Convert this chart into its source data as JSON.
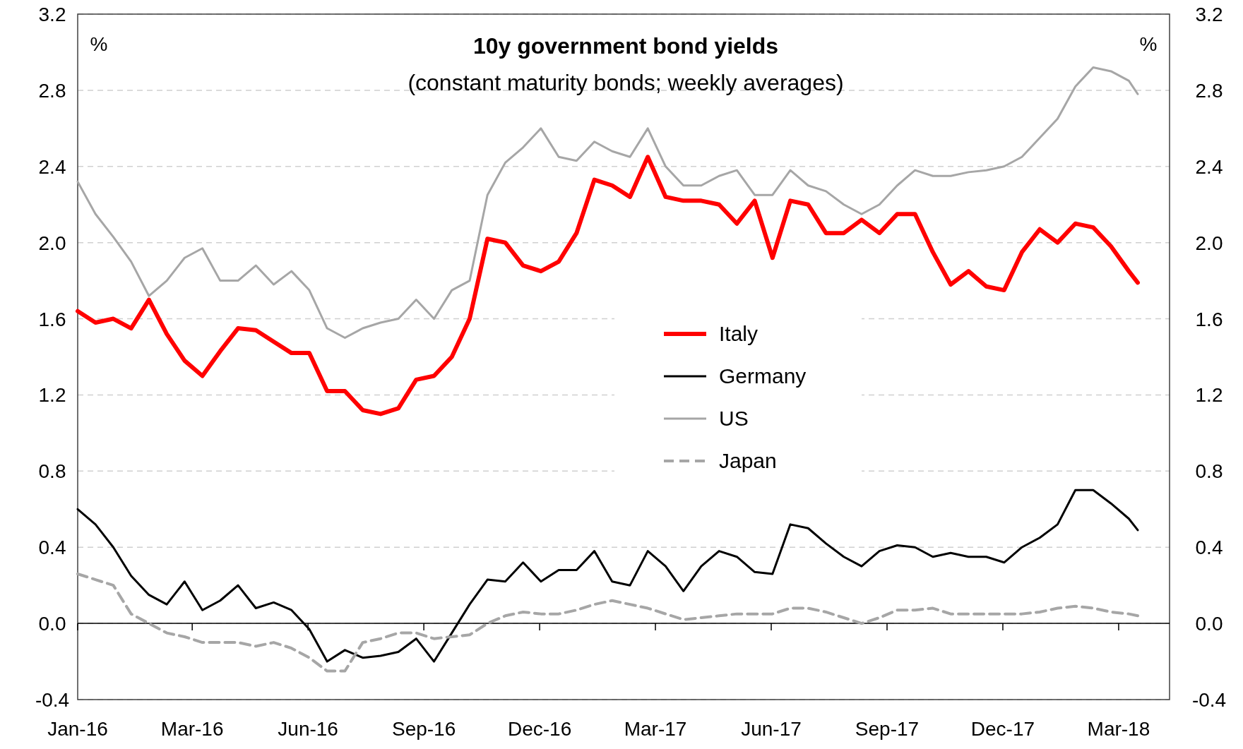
{
  "chart_data": {
    "type": "line",
    "title": "10y government bond yields",
    "subtitle": "(constant maturity bonds; weekly averages)",
    "ylabel": "%",
    "y2label": "%",
    "x": [
      "2016-01-01",
      "2016-01-15",
      "2016-01-29",
      "2016-02-12",
      "2016-02-26",
      "2016-03-11",
      "2016-03-25",
      "2016-04-08",
      "2016-04-22",
      "2016-05-06",
      "2016-05-20",
      "2016-06-03",
      "2016-06-17",
      "2016-07-01",
      "2016-07-15",
      "2016-07-29",
      "2016-08-12",
      "2016-08-26",
      "2016-09-09",
      "2016-09-23",
      "2016-10-07",
      "2016-10-21",
      "2016-11-04",
      "2016-11-18",
      "2016-12-02",
      "2016-12-16",
      "2016-12-30",
      "2017-01-13",
      "2017-01-27",
      "2017-02-10",
      "2017-02-24",
      "2017-03-10",
      "2017-03-24",
      "2017-04-07",
      "2017-04-21",
      "2017-05-05",
      "2017-05-19",
      "2017-06-02",
      "2017-06-16",
      "2017-06-30",
      "2017-07-14",
      "2017-07-28",
      "2017-08-11",
      "2017-08-25",
      "2017-09-08",
      "2017-09-22",
      "2017-10-06",
      "2017-10-20",
      "2017-11-03",
      "2017-11-17",
      "2017-12-01",
      "2017-12-15",
      "2017-12-29",
      "2018-01-12",
      "2018-01-26",
      "2018-02-09",
      "2018-02-23",
      "2018-03-09",
      "2018-03-23",
      "2018-04-06",
      "2018-04-13"
    ],
    "series": [
      {
        "name": "Italy",
        "color": "#ff0000",
        "line_style": "solid",
        "values": [
          1.64,
          1.58,
          1.6,
          1.55,
          1.7,
          1.52,
          1.38,
          1.3,
          1.43,
          1.55,
          1.54,
          1.48,
          1.42,
          1.42,
          1.22,
          1.22,
          1.12,
          1.1,
          1.13,
          1.28,
          1.3,
          1.4,
          1.6,
          2.02,
          2.0,
          1.88,
          1.85,
          1.9,
          2.05,
          2.33,
          2.3,
          2.24,
          2.45,
          2.24,
          2.22,
          2.22,
          2.2,
          2.1,
          2.22,
          1.92,
          2.22,
          2.2,
          2.05,
          2.05,
          2.12,
          2.05,
          2.15,
          2.15,
          1.95,
          1.78,
          1.85,
          1.77,
          1.75,
          1.95,
          2.07,
          2.0,
          2.1,
          2.08,
          1.98,
          1.85,
          1.79
        ]
      },
      {
        "name": "Germany",
        "color": "#000000",
        "line_style": "solid",
        "values": [
          0.6,
          0.52,
          0.4,
          0.25,
          0.15,
          0.1,
          0.22,
          0.07,
          0.12,
          0.2,
          0.08,
          0.11,
          0.07,
          -0.03,
          -0.2,
          -0.14,
          -0.18,
          -0.17,
          -0.15,
          -0.08,
          -0.2,
          -0.05,
          0.1,
          0.23,
          0.22,
          0.32,
          0.22,
          0.28,
          0.28,
          0.38,
          0.22,
          0.2,
          0.38,
          0.3,
          0.17,
          0.3,
          0.38,
          0.35,
          0.27,
          0.26,
          0.52,
          0.5,
          0.42,
          0.35,
          0.3,
          0.38,
          0.41,
          0.4,
          0.35,
          0.37,
          0.35,
          0.35,
          0.32,
          0.4,
          0.45,
          0.52,
          0.7,
          0.7,
          0.63,
          0.55,
          0.49
        ]
      },
      {
        "name": "US",
        "color": "#a6a6a6",
        "line_style": "solid",
        "values": [
          2.32,
          2.15,
          2.03,
          1.9,
          1.72,
          1.8,
          1.92,
          1.97,
          1.8,
          1.8,
          1.88,
          1.78,
          1.85,
          1.75,
          1.55,
          1.5,
          1.55,
          1.58,
          1.6,
          1.7,
          1.6,
          1.75,
          1.8,
          2.25,
          2.42,
          2.5,
          2.6,
          2.45,
          2.43,
          2.53,
          2.48,
          2.45,
          2.6,
          2.4,
          2.3,
          2.3,
          2.35,
          2.38,
          2.25,
          2.25,
          2.38,
          2.3,
          2.27,
          2.2,
          2.15,
          2.2,
          2.3,
          2.38,
          2.35,
          2.35,
          2.37,
          2.38,
          2.4,
          2.45,
          2.55,
          2.65,
          2.82,
          2.92,
          2.9,
          2.85,
          2.78
        ]
      },
      {
        "name": "Japan",
        "color": "#a6a6a6",
        "line_style": "dashed",
        "values": [
          0.26,
          0.23,
          0.2,
          0.05,
          0.0,
          -0.05,
          -0.07,
          -0.1,
          -0.1,
          -0.1,
          -0.12,
          -0.1,
          -0.13,
          -0.18,
          -0.25,
          -0.25,
          -0.1,
          -0.08,
          -0.05,
          -0.05,
          -0.08,
          -0.07,
          -0.06,
          0.0,
          0.04,
          0.06,
          0.05,
          0.05,
          0.07,
          0.1,
          0.12,
          0.1,
          0.08,
          0.05,
          0.02,
          0.03,
          0.04,
          0.05,
          0.05,
          0.05,
          0.08,
          0.08,
          0.06,
          0.03,
          0.0,
          0.03,
          0.07,
          0.07,
          0.08,
          0.05,
          0.05,
          0.05,
          0.05,
          0.05,
          0.06,
          0.08,
          0.09,
          0.08,
          0.06,
          0.05,
          0.04
        ]
      }
    ],
    "xlim": [
      "2016-01-01",
      "2018-05-08"
    ],
    "xticks": [
      {
        "value": "2016-01-01",
        "label": "Jan-16"
      },
      {
        "value": "2016-03-31",
        "label": "Mar-16"
      },
      {
        "value": "2016-06-30",
        "label": "Jun-16"
      },
      {
        "value": "2016-09-29",
        "label": "Sep-16"
      },
      {
        "value": "2016-12-29",
        "label": "Dec-16"
      },
      {
        "value": "2017-03-30",
        "label": "Mar-17"
      },
      {
        "value": "2017-06-29",
        "label": "Jun-17"
      },
      {
        "value": "2017-09-28",
        "label": "Sep-17"
      },
      {
        "value": "2017-12-28",
        "label": "Dec-17"
      },
      {
        "value": "2018-03-29",
        "label": "Mar-18"
      }
    ],
    "ylim": [
      -0.4,
      3.2
    ],
    "yticks": [
      {
        "value": -0.4,
        "label": "-0.4"
      },
      {
        "value": 0,
        "label": "0.0"
      },
      {
        "value": 0.4,
        "label": "0.4"
      },
      {
        "value": 0.8,
        "label": "0.8"
      },
      {
        "value": 1.2,
        "label": "1.2"
      },
      {
        "value": 1.6,
        "label": "1.6"
      },
      {
        "value": 2.0,
        "label": "2.0"
      },
      {
        "value": 2.4,
        "label": "2.4"
      },
      {
        "value": 2.8,
        "label": "2.8"
      },
      {
        "value": 3.2,
        "label": "3.2"
      }
    ],
    "y2lim": [
      -0.4,
      3.2
    ],
    "y2ticks": [
      {
        "value": -0.4,
        "label": "-0.4"
      },
      {
        "value": 0,
        "label": "0.0"
      },
      {
        "value": 0.4,
        "label": "0.4"
      },
      {
        "value": 0.8,
        "label": "0.8"
      },
      {
        "value": 1.2,
        "label": "1.2"
      },
      {
        "value": 1.6,
        "label": "1.6"
      },
      {
        "value": 2.0,
        "label": "2.0"
      },
      {
        "value": 2.4,
        "label": "2.4"
      },
      {
        "value": 2.8,
        "label": "2.8"
      },
      {
        "value": 3.2,
        "label": "3.2"
      }
    ],
    "grid": "y",
    "legend": "center"
  }
}
